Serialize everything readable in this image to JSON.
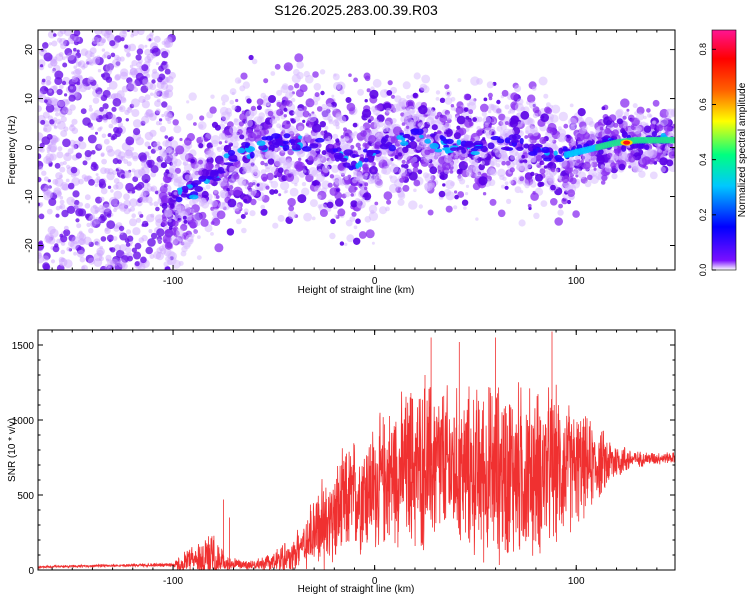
{
  "figure_title": "S126.2025.283.00.39.R03",
  "chart_data": [
    {
      "type": "heatmap",
      "title": "",
      "xlabel": "Height of straight line (km)",
      "ylabel": "Frequency (Hz)",
      "xlim": [
        -167,
        149
      ],
      "ylim": [
        -25,
        24
      ],
      "xticks": [
        -100,
        0,
        100
      ],
      "yticks": [
        -20,
        -10,
        0,
        10,
        20
      ],
      "colorbar": {
        "label": "Normalized spectral amplitude",
        "range": [
          0.0,
          0.87
        ],
        "ticks": [
          0.0,
          0.2,
          0.4,
          0.6,
          0.8
        ],
        "colormap": [
          "#ffffff",
          "#6a00ff",
          "#0000ff",
          "#00c8ff",
          "#00ff80",
          "#ffff00",
          "#ff6000",
          "#ff0000",
          "#ff1493"
        ]
      },
      "ridge": {
        "x": [
          -100,
          -90,
          -80,
          -72,
          -60,
          -50,
          -40,
          -30,
          -20,
          -10,
          0,
          10,
          20,
          30,
          40,
          50,
          60,
          70,
          80,
          90,
          100,
          110,
          120,
          130,
          140,
          149
        ],
        "f": [
          -10,
          -9,
          -6,
          -2,
          0,
          1,
          1,
          1,
          -1,
          -3,
          0,
          1,
          2,
          1,
          0,
          0,
          1,
          1,
          -1,
          -2,
          -1,
          0,
          1,
          1.5,
          1.5,
          1.5
        ]
      },
      "strong_peak": {
        "x": 125,
        "f": 1,
        "amplitude": 0.85
      }
    },
    {
      "type": "line",
      "title": "",
      "xlabel": "Height of straight line (km)",
      "ylabel": "SNR (10 * v/v)",
      "xlim": [
        -167,
        149
      ],
      "ylim": [
        0,
        1600
      ],
      "xticks": [
        -100,
        0,
        100
      ],
      "yticks": [
        0,
        500,
        1000,
        1500
      ],
      "color": "#f03030",
      "envelope": {
        "x": [
          -167,
          -130,
          -100,
          -95,
          -90,
          -80,
          -74,
          -60,
          -50,
          -40,
          -30,
          -20,
          -10,
          0,
          10,
          20,
          30,
          40,
          50,
          60,
          70,
          80,
          90,
          100,
          110,
          120,
          130,
          149
        ],
        "base": [
          20,
          30,
          35,
          40,
          60,
          60,
          40,
          35,
          50,
          100,
          250,
          350,
          500,
          550,
          650,
          680,
          700,
          680,
          650,
          650,
          650,
          650,
          680,
          680,
          700,
          730,
          740,
          750
        ],
        "amplitude": [
          8,
          10,
          15,
          80,
          130,
          220,
          60,
          30,
          80,
          150,
          300,
          400,
          450,
          500,
          550,
          650,
          650,
          600,
          650,
          700,
          700,
          650,
          600,
          450,
          300,
          150,
          60,
          40
        ]
      },
      "peaks": [
        {
          "x": 28,
          "y": 1550
        },
        {
          "x": 42,
          "y": 1520
        },
        {
          "x": 60,
          "y": 1550
        },
        {
          "x": 88,
          "y": 1590
        },
        {
          "x": 25,
          "y": 1300
        },
        {
          "x": -72,
          "y": 350
        },
        {
          "x": -75,
          "y": 470
        },
        {
          "x": 18,
          "y": 1180
        }
      ]
    }
  ]
}
